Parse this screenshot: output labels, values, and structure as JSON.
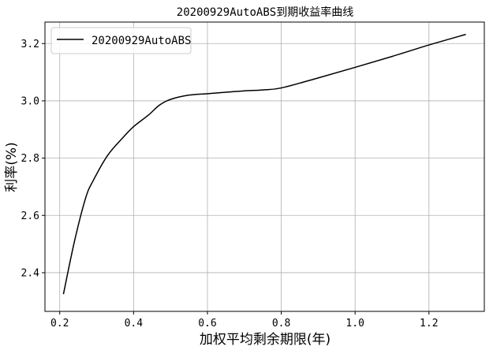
{
  "chart_data": {
    "type": "line",
    "title": "20200929AutoABS到期收益率曲线",
    "xlabel": "加权平均剩余期限(年)",
    "ylabel": "利率(%)",
    "xlim": [
      0.16,
      1.35
    ],
    "ylim": [
      2.265,
      3.275
    ],
    "xticks": [
      0.2,
      0.4,
      0.6,
      0.8,
      1.0,
      1.2
    ],
    "xtick_labels": [
      "0.2",
      "0.4",
      "0.6",
      "0.8",
      "1.0",
      "1.2"
    ],
    "yticks": [
      2.4,
      2.6,
      2.8,
      3.0,
      3.2
    ],
    "ytick_labels": [
      "2.4",
      "2.6",
      "2.8",
      "3.0",
      "3.2"
    ],
    "grid": true,
    "legend_position": "top-left",
    "color": "#000000",
    "series": [
      {
        "name": "20200929AutoABS",
        "x": [
          0.21,
          0.24,
          0.27,
          0.29,
          0.33,
          0.37,
          0.4,
          0.44,
          0.47,
          0.5,
          0.55,
          0.6,
          0.65,
          0.7,
          0.75,
          0.8,
          0.9,
          1.0,
          1.1,
          1.2,
          1.3
        ],
        "y": [
          2.325,
          2.51,
          2.66,
          2.72,
          2.81,
          2.87,
          2.91,
          2.95,
          2.985,
          3.005,
          3.02,
          3.025,
          3.03,
          3.035,
          3.038,
          3.045,
          3.08,
          3.117,
          3.155,
          3.195,
          3.232
        ]
      }
    ]
  }
}
